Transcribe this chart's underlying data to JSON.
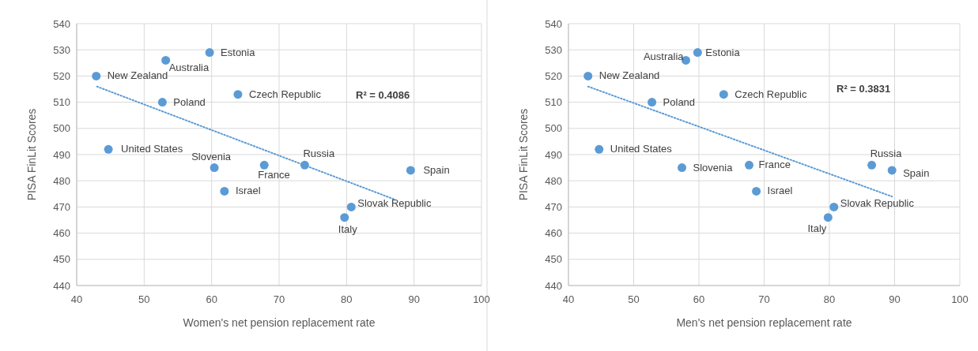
{
  "chart_data": [
    {
      "type": "scatter",
      "xlabel": "Women's net pension replacement rate",
      "ylabel": "PISA FinLit Scores",
      "xlim": [
        40,
        100
      ],
      "ylim": [
        440,
        540
      ],
      "xticks": [
        40,
        50,
        60,
        70,
        80,
        90,
        100
      ],
      "yticks": [
        440,
        450,
        460,
        470,
        480,
        490,
        500,
        510,
        520,
        530,
        540
      ],
      "grid": true,
      "marker": "circle",
      "series": [
        {
          "color": "#5b9bd5",
          "x": [
            42.9,
            53.2,
            59.7,
            52.7,
            63.9,
            44.7,
            60.4,
            67.8,
            73.8,
            89.5,
            61.9,
            80.7,
            79.7
          ],
          "values": [
            520,
            526,
            529,
            510,
            513,
            492,
            485,
            486,
            486,
            484,
            476,
            470,
            466
          ]
        },
        {
          "type": "line",
          "color": "#5b9bd5",
          "line_style": "dotted",
          "marker": "none",
          "x": [
            43,
            87
          ],
          "values": [
            516,
            473
          ]
        }
      ],
      "annotations": [
        {
          "text": "New Zealand",
          "x": 42.9,
          "y": 520
        },
        {
          "text": "Australia",
          "x": 53.2,
          "y": 526
        },
        {
          "text": "Estonia",
          "x": 59.7,
          "y": 529
        },
        {
          "text": "Poland",
          "x": 52.7,
          "y": 510
        },
        {
          "text": "Czech Republic",
          "x": 63.9,
          "y": 513
        },
        {
          "text": "United States",
          "x": 44.7,
          "y": 492
        },
        {
          "text": "Slovenia",
          "x": 60.4,
          "y": 485
        },
        {
          "text": "France",
          "x": 67.8,
          "y": 486
        },
        {
          "text": "Russia",
          "x": 73.8,
          "y": 486
        },
        {
          "text": "Spain",
          "x": 89.5,
          "y": 484
        },
        {
          "text": "Israel",
          "x": 61.9,
          "y": 476
        },
        {
          "text": "Slovak Republic",
          "x": 80.7,
          "y": 470
        },
        {
          "text": "Italy",
          "x": 79.7,
          "y": 466
        },
        "R² = 0.4086"
      ]
    },
    {
      "type": "scatter",
      "xlabel": "Men's net pension replacement rate",
      "ylabel": "PISA FinLit Scores",
      "xlim": [
        40,
        100
      ],
      "ylim": [
        440,
        540
      ],
      "xticks": [
        40,
        50,
        60,
        70,
        80,
        90,
        100
      ],
      "yticks": [
        440,
        450,
        460,
        470,
        480,
        490,
        500,
        510,
        520,
        530,
        540
      ],
      "grid": true,
      "marker": "circle",
      "series": [
        {
          "color": "#5b9bd5",
          "x": [
            43,
            58,
            59.8,
            52.8,
            63.8,
            44.7,
            57.4,
            67.7,
            86.5,
            89.6,
            68.8,
            80.7,
            79.8
          ],
          "values": [
            520,
            526,
            529,
            510,
            513,
            492,
            485,
            486,
            486,
            484,
            476,
            470,
            466
          ]
        },
        {
          "type": "line",
          "color": "#5b9bd5",
          "line_style": "dotted",
          "marker": "none",
          "x": [
            43,
            89.6
          ],
          "values": [
            516,
            474
          ]
        }
      ],
      "annotations": [
        {
          "text": "New Zealand",
          "x": 43,
          "y": 520
        },
        {
          "text": "Australia",
          "x": 58,
          "y": 526
        },
        {
          "text": "Estonia",
          "x": 59.8,
          "y": 529
        },
        {
          "text": "Poland",
          "x": 52.8,
          "y": 510
        },
        {
          "text": "Czech Republic",
          "x": 63.8,
          "y": 513
        },
        {
          "text": "United States",
          "x": 44.7,
          "y": 492
        },
        {
          "text": "Slovenia",
          "x": 57.4,
          "y": 485
        },
        {
          "text": "France",
          "x": 67.7,
          "y": 486
        },
        {
          "text": "Russia",
          "x": 86.5,
          "y": 486
        },
        {
          "text": "Spain",
          "x": 89.6,
          "y": 484
        },
        {
          "text": "Israel",
          "x": 68.8,
          "y": 476
        },
        {
          "text": "Slovak Republic",
          "x": 80.7,
          "y": 470
        },
        {
          "text": "Italy",
          "x": 79.8,
          "y": 466
        },
        "R² = 0.3831"
      ]
    }
  ]
}
